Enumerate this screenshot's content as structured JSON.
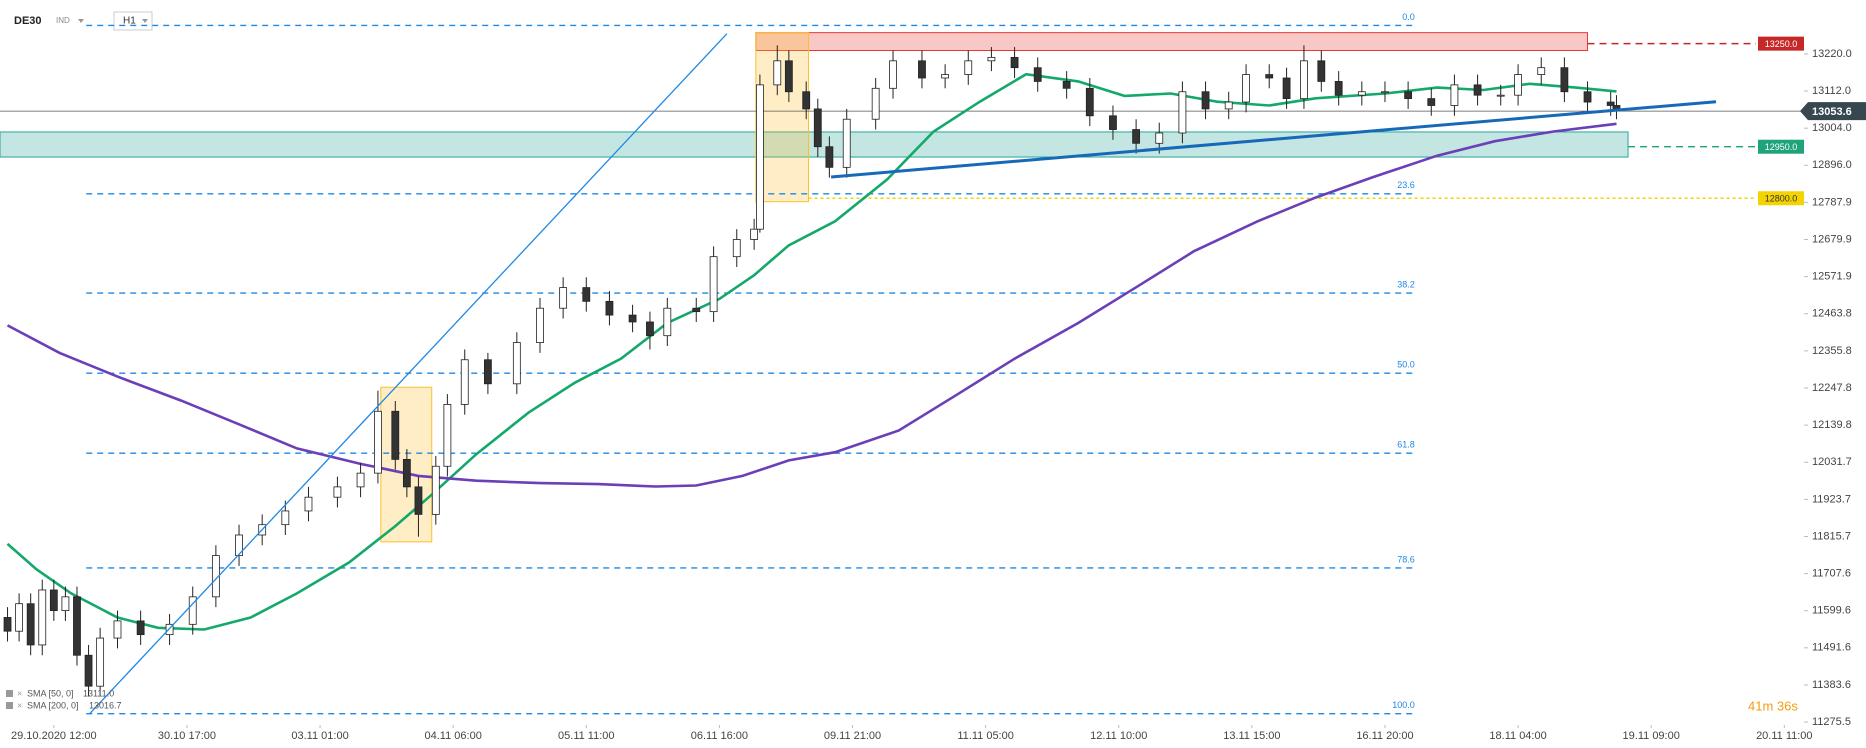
{
  "chart_data": {
    "type": "candlestick",
    "symbol": "DE30",
    "market": "IND",
    "interval": "H1",
    "timer": "41m 36s",
    "xlim": [
      -9.3,
      298.6
    ],
    "xticks": [
      {
        "value": 0,
        "label": "29.10.2020 12:00"
      },
      {
        "value": 23,
        "label": "30.10 17:00"
      },
      {
        "value": 46,
        "label": "03.11 01:00"
      },
      {
        "value": 69,
        "label": "04.11 06:00"
      },
      {
        "value": 92,
        "label": "05.11 11:00"
      },
      {
        "value": 115,
        "label": "06.11 16:00"
      },
      {
        "value": 138,
        "label": "09.11 21:00"
      },
      {
        "value": 161,
        "label": "11.11 05:00"
      },
      {
        "value": 184,
        "label": "12.11 10:00"
      },
      {
        "value": 207,
        "label": "13.11 15:00"
      },
      {
        "value": 230,
        "label": "16.11 20:00"
      },
      {
        "value": 253,
        "label": "18.11 04:00"
      },
      {
        "value": 276,
        "label": "19.11 09:00"
      },
      {
        "value": 299,
        "label": "20.11 11:00"
      }
    ],
    "ylim": [
      11267,
      13377
    ],
    "yticks": [
      {
        "value": 13220,
        "label": "13220.0"
      },
      {
        "value": 13112,
        "label": "13112.0"
      },
      {
        "value": 13004,
        "label": "13004.0"
      },
      {
        "value": 12896,
        "label": "12896.0"
      },
      {
        "value": 12787.9,
        "label": "12787.9"
      },
      {
        "value": 12679.9,
        "label": "12679.9"
      },
      {
        "value": 12571.9,
        "label": "12571.9"
      },
      {
        "value": 12463.8,
        "label": "12463.8"
      },
      {
        "value": 12355.8,
        "label": "12355.8"
      },
      {
        "value": 12247.8,
        "label": "12247.8"
      },
      {
        "value": 12139.8,
        "label": "12139.8"
      },
      {
        "value": 12031.7,
        "label": "12031.7"
      },
      {
        "value": 11923.7,
        "label": "11923.7"
      },
      {
        "value": 11815.7,
        "label": "11815.7"
      },
      {
        "value": 11707.6,
        "label": "11707.6"
      },
      {
        "value": 11599.6,
        "label": "11599.6"
      },
      {
        "value": 11491.6,
        "label": "11491.6"
      },
      {
        "value": 11383.6,
        "label": "11383.6"
      },
      {
        "value": 11275.5,
        "label": "11275.5"
      }
    ],
    "up_color": "#ffffff",
    "down_color": "#333333",
    "wick_color": "#222222",
    "candles": {
      "x": [
        -8,
        -6,
        -4,
        -2,
        0,
        2,
        4,
        6,
        8,
        11,
        15,
        20,
        24,
        28,
        32,
        36,
        40,
        44,
        49,
        53,
        56,
        59,
        61,
        63,
        66,
        68,
        71,
        75,
        80,
        84,
        88,
        92,
        96,
        100,
        103,
        106,
        111,
        114,
        118,
        121,
        122,
        125,
        127,
        130,
        132,
        134,
        137,
        142,
        145,
        150,
        154,
        158,
        162,
        166,
        170,
        175,
        179,
        183,
        187,
        191,
        195,
        199,
        203,
        206,
        210,
        213,
        216,
        219,
        222,
        226,
        230,
        234,
        238,
        242,
        246,
        250,
        253,
        257,
        261,
        265,
        269,
        270
      ],
      "open": [
        11580,
        11540,
        11620,
        11500,
        11660,
        11600,
        11640,
        11470,
        11380,
        11520,
        11570,
        11530,
        11560,
        11640,
        11760,
        11820,
        11850,
        11890,
        11930,
        11960,
        12000,
        12180,
        12040,
        11960,
        11880,
        12020,
        12200,
        12330,
        12260,
        12380,
        12480,
        12540,
        12500,
        12460,
        12440,
        12400,
        12480,
        12470,
        12630,
        12680,
        12710,
        13130,
        13200,
        13110,
        13060,
        12950,
        12890,
        13030,
        13120,
        13200,
        13150,
        13160,
        13200,
        13210,
        13180,
        13140,
        13120,
        13040,
        13000,
        12960,
        12990,
        13110,
        13060,
        13080,
        13160,
        13150,
        13090,
        13200,
        13140,
        13100,
        13110,
        13110,
        13090,
        13070,
        13130,
        13100,
        13100,
        13160,
        13180,
        13110,
        13080,
        13070
      ],
      "high": [
        11610,
        11650,
        11650,
        11690,
        11690,
        11670,
        11670,
        11500,
        11550,
        11600,
        11600,
        11590,
        11670,
        11790,
        11850,
        11880,
        11920,
        11960,
        11990,
        12030,
        12240,
        12210,
        12070,
        11990,
        12050,
        12230,
        12360,
        12350,
        12410,
        12510,
        12570,
        12570,
        12530,
        12490,
        12470,
        12510,
        12510,
        12660,
        12710,
        12740,
        13160,
        13245,
        13230,
        13140,
        13090,
        12980,
        13060,
        13150,
        13230,
        13230,
        13190,
        13230,
        13240,
        13240,
        13210,
        13170,
        13150,
        13070,
        13030,
        13020,
        13140,
        13140,
        13110,
        13190,
        13190,
        13180,
        13245,
        13230,
        13170,
        13140,
        13140,
        13140,
        13120,
        13160,
        13160,
        13130,
        13190,
        13210,
        13210,
        13140,
        13110,
        13100
      ],
      "low": [
        11510,
        11510,
        11470,
        11470,
        11570,
        11570,
        11440,
        11350,
        11350,
        11490,
        11500,
        11500,
        11530,
        11610,
        11730,
        11790,
        11820,
        11860,
        11900,
        11930,
        11970,
        12010,
        11930,
        11815,
        11850,
        11990,
        12170,
        12230,
        12230,
        12350,
        12450,
        12470,
        12430,
        12410,
        12360,
        12370,
        12440,
        12440,
        12600,
        12650,
        12700,
        13100,
        13080,
        13030,
        12920,
        12860,
        12860,
        13000,
        13090,
        13120,
        13120,
        13130,
        13170,
        13150,
        13110,
        13090,
        13010,
        12970,
        12930,
        12930,
        12960,
        13030,
        13030,
        13050,
        13120,
        13060,
        13060,
        13110,
        13070,
        13070,
        13080,
        13060,
        13040,
        13040,
        13070,
        13070,
        13070,
        13130,
        13080,
        13050,
        13040,
        13030
      ],
      "close": [
        11540,
        11620,
        11500,
        11660,
        11600,
        11640,
        11470,
        11380,
        11520,
        11570,
        11530,
        11560,
        11640,
        11760,
        11820,
        11850,
        11890,
        11930,
        11960,
        12000,
        12180,
        12040,
        11960,
        11880,
        12020,
        12200,
        12330,
        12260,
        12380,
        12480,
        12540,
        12500,
        12460,
        12440,
        12400,
        12480,
        12470,
        12630,
        12680,
        12710,
        13130,
        13200,
        13110,
        13060,
        12950,
        12890,
        13030,
        13120,
        13200,
        13150,
        13160,
        13200,
        13210,
        13180,
        13140,
        13120,
        13040,
        13000,
        12960,
        12990,
        13110,
        13060,
        13080,
        13160,
        13150,
        13090,
        13200,
        13140,
        13100,
        13110,
        13110,
        13090,
        13070,
        13130,
        13100,
        13100,
        13160,
        13180,
        13110,
        13080,
        13070,
        13053.6
      ]
    },
    "series": [
      {
        "name": "SMA [50, 0]",
        "value_label": "13111.0",
        "color": "#14a86b",
        "x": [
          -8,
          -3,
          3,
          11,
          18,
          26,
          34,
          42,
          51,
          59,
          65,
          73,
          82,
          90,
          98,
          106,
          115,
          121,
          127,
          135,
          144,
          152,
          160,
          168,
          177,
          185,
          193,
          201,
          210,
          218,
          230,
          239,
          247,
          255,
          263,
          270
        ],
        "values": [
          11794,
          11720,
          11650,
          11580,
          11550,
          11545,
          11580,
          11650,
          11740,
          11846,
          11933,
          12055,
          12176,
          12263,
          12333,
          12437,
          12507,
          12576,
          12663,
          12733,
          12855,
          12994,
          13081,
          13161,
          13140,
          13098,
          13105,
          13081,
          13070,
          13091,
          13105,
          13122,
          13115,
          13133,
          13122,
          13111
        ]
      },
      {
        "name": "SMA [200, 0]",
        "value_label": "13016.7",
        "color": "#6b3fb8",
        "x": [
          -8,
          1,
          11,
          22,
          32,
          42,
          53,
          63,
          73,
          84,
          94,
          104,
          111,
          119,
          127,
          135,
          146,
          156,
          166,
          177,
          187,
          197,
          208,
          218,
          228,
          239,
          249,
          259,
          270
        ],
        "values": [
          12430,
          12350,
          12281,
          12211,
          12142,
          12072,
          12027,
          11992,
          11978,
          11971,
          11968,
          11961,
          11964,
          11992,
          12037,
          12061,
          12124,
          12228,
          12333,
          12437,
          12541,
          12646,
          12733,
          12802,
          12862,
          12924,
          12966,
          12994,
          13016.7
        ]
      }
    ],
    "last_price": {
      "value": 13053.6,
      "label": "13053.6",
      "color": "#37474f"
    },
    "zones": [
      {
        "ylim": [
          13230,
          13282
        ],
        "xlim": [
          121.3,
          265
        ],
        "color": "#e53935"
      },
      {
        "ylim": [
          12920,
          12993
        ],
        "xlim": [
          -9.3,
          272
        ],
        "color": "#26a69a"
      },
      {
        "ylim": [
          11800,
          12250
        ],
        "xlim": [
          56.5,
          65.3
        ],
        "color": "#fbc02d"
      },
      {
        "ylim": [
          12790,
          13282
        ],
        "xlim": [
          121.3,
          130.4
        ],
        "color": "#fbc02d"
      }
    ],
    "price_levels": [
      {
        "value": 13250,
        "label": "13250.0",
        "color": "#c62828",
        "x_from": 265
      },
      {
        "value": 12950,
        "label": "12950.0",
        "color": "#1fa37a",
        "x_from": 272
      },
      {
        "value": 12800,
        "label": "12800.0",
        "color": "#f5d300",
        "x_from": 130.4
      }
    ],
    "fibonacci": {
      "color": "#1e88e5",
      "xlim": [
        5.6,
        235.5
      ],
      "levels": [
        {
          "label": "0.0",
          "value": 13303
        },
        {
          "label": "23.6",
          "value": 12813
        },
        {
          "label": "38.2",
          "value": 12524
        },
        {
          "label": "50.0",
          "value": 12291
        },
        {
          "label": "61.8",
          "value": 12058
        },
        {
          "label": "78.6",
          "value": 11724
        },
        {
          "label": "100.0",
          "value": 11300
        }
      ]
    },
    "trendlines": [
      {
        "x": [
          6.2,
          116.3
        ],
        "y": [
          11300,
          13279
        ],
        "color": "#1e88e5",
        "width": 1.3
      },
      {
        "x": [
          134.3,
          287.2
        ],
        "y": [
          12862,
          13081
        ],
        "color": "#1769b8",
        "width": 3
      }
    ]
  }
}
